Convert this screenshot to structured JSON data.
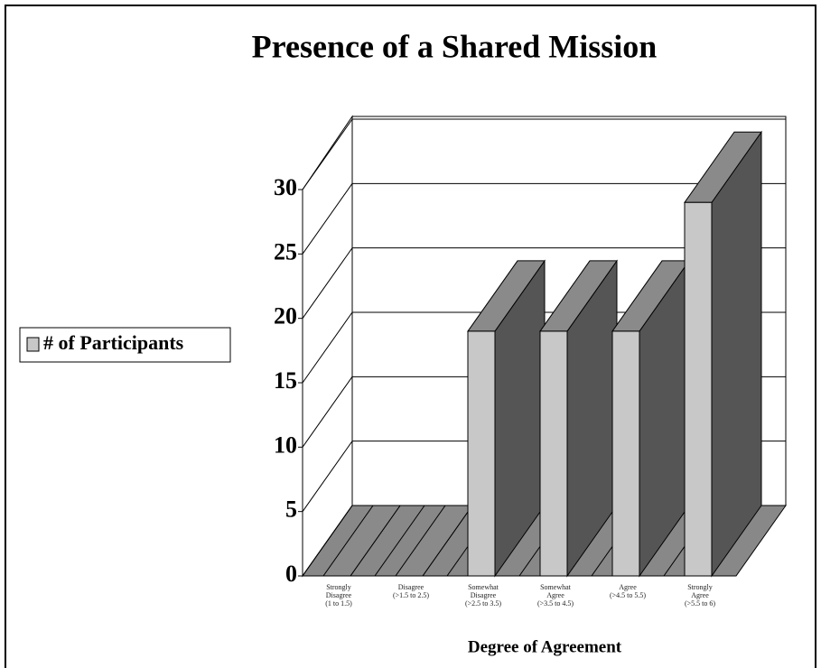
{
  "chart_data": {
    "type": "bar3d",
    "title": "Presence of a Shared Mission",
    "xlabel": "Degree of Agreement",
    "categories": [
      "Strongly\nDisagree\n(1 to 1.5)",
      "Disagree\n(>1.5 to 2.5)",
      "Somewhat\nDisagree\n(>2.5 to 3.5)",
      "Somewhat\nAgree\n(>3.5 to 4.5)",
      "Agree\n(>4.5 to 5.5)",
      "Strongly\nAgree\n(>5.5 to 6)"
    ],
    "series": [
      {
        "name": "# of Participants",
        "color": "#c8c8c8",
        "values": [
          0,
          0,
          19,
          19,
          19,
          29
        ]
      }
    ],
    "ylim": [
      0,
      30
    ],
    "yticks": [
      0,
      5,
      10,
      15,
      20,
      25,
      30
    ],
    "grid": true,
    "legend": "left"
  }
}
